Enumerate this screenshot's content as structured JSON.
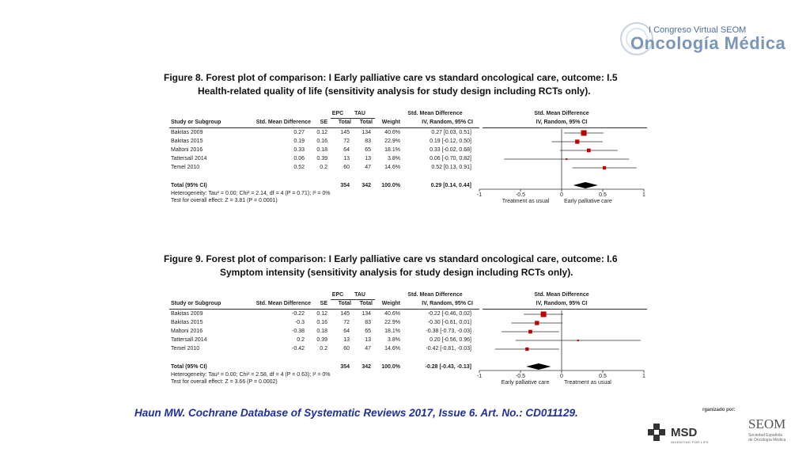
{
  "branding": {
    "congress": "I Congreso Virtual SEOM",
    "logo_text": "Oncología Médica",
    "organized_by": "rganizado por:",
    "sponsor": "MSD",
    "sponsor_tagline": "INVENTING FOR LIFE",
    "society": "SEOM",
    "society_sub_1": "Sociedad Española",
    "society_sub_2": "de Oncología Médica"
  },
  "citation": "Haun MW. Cochrane Database of Systematic Reviews 2017, Issue 6. Art. No.: CD011129.",
  "figures": [
    {
      "title_line1": "Figure 8.   Forest plot of comparison: I Early palliative care vs standard oncological care, outcome: I.5",
      "title_line2": "Health-related quality of life (sensitivity analysis for study design including RCTs only).",
      "headers": {
        "group_epc": "EPC",
        "group_tau": "TAU",
        "group_smd": "Std. Mean Difference",
        "group_plot": "Std. Mean Difference",
        "study": "Study or Subgroup",
        "smd": "Std. Mean Difference",
        "se": "SE",
        "total1": "Total",
        "total2": "Total",
        "weight": "Weight",
        "ci_method": "IV, Random, 95% CI",
        "plot_method": "IV, Random, 95% CI"
      },
      "rows": [
        {
          "study": "Bakitas 2009",
          "smd": "0.27",
          "se": "0.12",
          "epc": "145",
          "tau": "134",
          "weight": "40.6%",
          "ci": "0.27 [0.03, 0.51]"
        },
        {
          "study": "Bakitas 2015",
          "smd": "0.19",
          "se": "0.16",
          "epc": "72",
          "tau": "83",
          "weight": "22.9%",
          "ci": "0.19 [-0.12, 0.50]"
        },
        {
          "study": "Maltoni 2016",
          "smd": "0.33",
          "se": "0.18",
          "epc": "64",
          "tau": "65",
          "weight": "18.1%",
          "ci": "0.33 [-0.02, 0.68]"
        },
        {
          "study": "Tattersall 2014",
          "smd": "0.06",
          "se": "0.39",
          "epc": "13",
          "tau": "13",
          "weight": "3.8%",
          "ci": "0.06 [-0.70, 0.82]"
        },
        {
          "study": "Temel 2010",
          "smd": "0.52",
          "se": "0.2",
          "epc": "60",
          "tau": "47",
          "weight": "14.6%",
          "ci": "0.52 [0.13, 0.91]"
        }
      ],
      "total": {
        "label": "Total (95% CI)",
        "epc": "354",
        "tau": "342",
        "weight": "100.0%",
        "ci": "0.29 [0.14, 0.44]"
      },
      "heterogeneity": "Heterogeneity: Tau² = 0.00; Chi² = 2.14, df = 4 (P = 0.71); I² = 0%",
      "overall_effect": "Test for overall effect: Z = 3.81 (P = 0.0001)",
      "axis_left_label": "Treatment as usual",
      "axis_right_label": "Early palliative care",
      "tick_labels": [
        "-1",
        "-0.5",
        "0",
        "0.5",
        "1"
      ]
    },
    {
      "title_line1": "Figure 9.   Forest plot of comparison: I Early palliative care vs standard oncological care, outcome: I.6",
      "title_line2": "Symptom intensity (sensitivity analysis for study design including RCTs only).",
      "headers": {
        "group_epc": "EPC",
        "group_tau": "TAU",
        "group_smd": "Std. Mean Difference",
        "group_plot": "Std. Mean Difference",
        "study": "Study or Subgroup",
        "smd": "Std. Mean Difference",
        "se": "SE",
        "total1": "Total",
        "total2": "Total",
        "weight": "Weight",
        "ci_method": "IV, Random, 95% CI",
        "plot_method": "IV, Random, 95% CI"
      },
      "rows": [
        {
          "study": "Bakitas 2009",
          "smd": "-0.22",
          "se": "0.12",
          "epc": "145",
          "tau": "134",
          "weight": "40.6%",
          "ci": "-0.22 [-0.46, 0.02]"
        },
        {
          "study": "Bakitas 2015",
          "smd": "-0.3",
          "se": "0.16",
          "epc": "72",
          "tau": "83",
          "weight": "22.9%",
          "ci": "-0.30 [-0.61, 0.01]"
        },
        {
          "study": "Maltoni 2016",
          "smd": "-0.38",
          "se": "0.18",
          "epc": "64",
          "tau": "65",
          "weight": "18.1%",
          "ci": "-0.38 [-0.73, -0.03]"
        },
        {
          "study": "Tattersall 2014",
          "smd": "0.2",
          "se": "0.39",
          "epc": "13",
          "tau": "13",
          "weight": "3.8%",
          "ci": "0.20 [-0.56, 0.96]"
        },
        {
          "study": "Temel 2010",
          "smd": "-0.42",
          "se": "0.2",
          "epc": "60",
          "tau": "47",
          "weight": "14.6%",
          "ci": "-0.42 [-0.81, -0.03]"
        }
      ],
      "total": {
        "label": "Total (95% CI)",
        "epc": "354",
        "tau": "342",
        "weight": "100.0%",
        "ci": "-0.28 [-0.43, -0.13]"
      },
      "heterogeneity": "Heterogeneity: Tau² = 0.00; Chi² = 2.58, df = 4 (P = 0.63); I² = 0%",
      "overall_effect": "Test for overall effect: Z = 3.66 (P = 0.0002)",
      "axis_left_label": "Early palliative care",
      "axis_right_label": "Treatment as usual",
      "tick_labels": [
        "-1",
        "-0.5",
        "0",
        "0.5",
        "1"
      ]
    }
  ],
  "chart_data": [
    {
      "type": "forest",
      "xlim": [
        -1,
        1
      ],
      "studies": [
        {
          "name": "Bakitas 2009",
          "estimate": 0.27,
          "lower": 0.03,
          "upper": 0.51,
          "weight": 40.6
        },
        {
          "name": "Bakitas 2015",
          "estimate": 0.19,
          "lower": -0.12,
          "upper": 0.5,
          "weight": 22.9
        },
        {
          "name": "Maltoni 2016",
          "estimate": 0.33,
          "lower": -0.02,
          "upper": 0.68,
          "weight": 18.1
        },
        {
          "name": "Tattersall 2014",
          "estimate": 0.06,
          "lower": -0.7,
          "upper": 0.82,
          "weight": 3.8
        },
        {
          "name": "Temel 2010",
          "estimate": 0.52,
          "lower": 0.13,
          "upper": 0.91,
          "weight": 14.6
        }
      ],
      "pooled": {
        "estimate": 0.29,
        "lower": 0.14,
        "upper": 0.44
      },
      "ticks": [
        -1,
        -0.5,
        0,
        0.5,
        1
      ]
    },
    {
      "type": "forest",
      "xlim": [
        -1,
        1
      ],
      "studies": [
        {
          "name": "Bakitas 2009",
          "estimate": -0.22,
          "lower": -0.46,
          "upper": 0.02,
          "weight": 40.6
        },
        {
          "name": "Bakitas 2015",
          "estimate": -0.3,
          "lower": -0.61,
          "upper": 0.01,
          "weight": 22.9
        },
        {
          "name": "Maltoni 2016",
          "estimate": -0.38,
          "lower": -0.73,
          "upper": -0.03,
          "weight": 18.1
        },
        {
          "name": "Tattersall 2014",
          "estimate": 0.2,
          "lower": -0.56,
          "upper": 0.96,
          "weight": 3.8
        },
        {
          "name": "Temel 2010",
          "estimate": -0.42,
          "lower": -0.81,
          "upper": -0.03,
          "weight": 14.6
        }
      ],
      "pooled": {
        "estimate": -0.28,
        "lower": -0.43,
        "upper": -0.13
      },
      "ticks": [
        -1,
        -0.5,
        0,
        0.5,
        1
      ]
    }
  ],
  "colors": {
    "marker": "#c00000",
    "citation": "#1f2f9e",
    "brand": "#7a96b8"
  }
}
